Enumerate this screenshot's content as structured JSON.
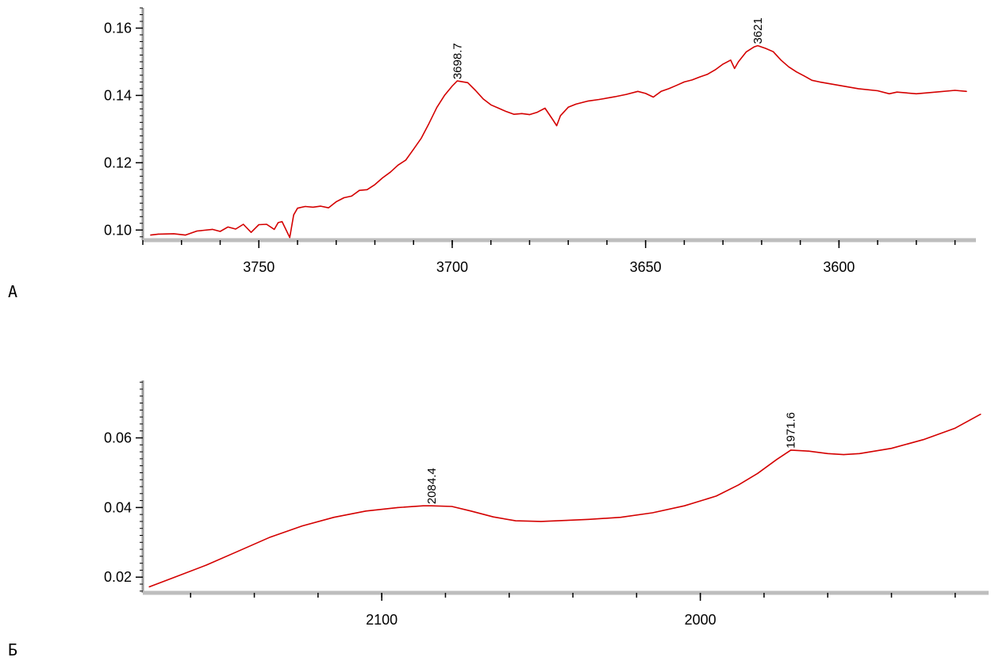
{
  "panels": [
    {
      "letter": "А"
    },
    {
      "letter": "Б"
    }
  ],
  "chart_data": [
    {
      "type": "line",
      "xlim": [
        3780,
        3565
      ],
      "ylim": [
        0.097,
        0.166
      ],
      "x_reversed": true,
      "xticks": [
        3750,
        3700,
        3650,
        3600
      ],
      "xtick_labels": [
        "3750",
        "3700",
        "3650",
        "3600"
      ],
      "yticks": [
        0.1,
        0.12,
        0.14,
        0.16
      ],
      "ytick_labels": [
        "0.10",
        "0.12",
        "0.14",
        "0.16"
      ],
      "series": [
        {
          "color": "#d40000",
          "x": [
            3778,
            3776,
            3772,
            3769,
            3766,
            3762,
            3760,
            3758,
            3756,
            3754,
            3752,
            3750,
            3748,
            3746,
            3745,
            3744,
            3742,
            3741,
            3740,
            3738,
            3736,
            3734,
            3732,
            3730,
            3728,
            3726,
            3724,
            3722,
            3720,
            3718,
            3716,
            3714,
            3712,
            3710,
            3708,
            3706,
            3704,
            3702,
            3700,
            3698.7,
            3696,
            3694,
            3692,
            3690,
            3688,
            3686,
            3684,
            3682,
            3680,
            3678,
            3676,
            3674,
            3673,
            3672,
            3670,
            3668,
            3665,
            3662,
            3658,
            3655,
            3652,
            3650,
            3648,
            3646,
            3644,
            3642,
            3640,
            3638,
            3636,
            3634,
            3632,
            3630,
            3628,
            3627,
            3626,
            3624,
            3622,
            3621,
            3619,
            3617,
            3615,
            3613,
            3611,
            3609,
            3607,
            3605,
            3600,
            3595,
            3590,
            3587,
            3585,
            3580,
            3575,
            3570,
            3567
          ],
          "y": [
            0.0985,
            0.0988,
            0.0989,
            0.0985,
            0.0997,
            0.1002,
            0.0996,
            0.1009,
            0.1003,
            0.1017,
            0.0993,
            0.1016,
            0.1017,
            0.1002,
            0.1022,
            0.1025,
            0.0978,
            0.1045,
            0.1065,
            0.107,
            0.1068,
            0.1071,
            0.1066,
            0.1084,
            0.1096,
            0.1101,
            0.1118,
            0.112,
            0.1135,
            0.1155,
            0.1172,
            0.1193,
            0.1208,
            0.124,
            0.1273,
            0.1317,
            0.1364,
            0.14,
            0.1428,
            0.1443,
            0.1438,
            0.1415,
            0.139,
            0.1372,
            0.1362,
            0.1352,
            0.1344,
            0.1346,
            0.1343,
            0.135,
            0.1362,
            0.1328,
            0.131,
            0.134,
            0.1365,
            0.1374,
            0.1383,
            0.1388,
            0.1396,
            0.1403,
            0.1412,
            0.1406,
            0.1395,
            0.1412,
            0.142,
            0.143,
            0.144,
            0.1446,
            0.1455,
            0.1463,
            0.1476,
            0.1493,
            0.1505,
            0.148,
            0.15,
            0.1529,
            0.1544,
            0.1548,
            0.154,
            0.153,
            0.1505,
            0.1485,
            0.147,
            0.1458,
            0.1445,
            0.144,
            0.143,
            0.142,
            0.1414,
            0.1405,
            0.141,
            0.1405,
            0.141,
            0.1415,
            0.1412
          ]
        }
      ],
      "annotations": [
        {
          "label": "3698.7",
          "x": 3698.7,
          "y": 0.1443
        },
        {
          "label": "3621",
          "x": 3621,
          "y": 0.1548
        }
      ]
    },
    {
      "type": "line",
      "xlim": [
        2175,
        1910
      ],
      "ylim": [
        0.0155,
        0.0765
      ],
      "x_reversed": true,
      "xticks": [
        2100,
        2000
      ],
      "xtick_labels": [
        "2100",
        "2000"
      ],
      "yticks": [
        0.02,
        0.04,
        0.06
      ],
      "ytick_labels": [
        "0.02",
        "0.04",
        "0.06"
      ],
      "series": [
        {
          "color": "#d40000",
          "x": [
            2173,
            2165,
            2155,
            2145,
            2135,
            2125,
            2115,
            2105,
            2095,
            2087,
            2084.4,
            2078,
            2072,
            2065,
            2058,
            2050,
            2042,
            2035,
            2025,
            2015,
            2005,
            1995,
            1988,
            1982,
            1976,
            1971.6,
            1966,
            1960,
            1955,
            1950,
            1940,
            1930,
            1920,
            1912
          ],
          "y": [
            0.0172,
            0.02,
            0.0235,
            0.0275,
            0.0315,
            0.0347,
            0.0372,
            0.039,
            0.04,
            0.0405,
            0.0405,
            0.0403,
            0.039,
            0.0373,
            0.0362,
            0.036,
            0.0363,
            0.0366,
            0.0372,
            0.0385,
            0.0405,
            0.0433,
            0.0465,
            0.0498,
            0.0538,
            0.0565,
            0.0562,
            0.0555,
            0.0552,
            0.0555,
            0.057,
            0.0595,
            0.0628,
            0.0668
          ]
        }
      ],
      "annotations": [
        {
          "label": "2084.4",
          "x": 2084.4,
          "y": 0.0405
        },
        {
          "label": "1971.6",
          "x": 1971.6,
          "y": 0.0565
        }
      ]
    }
  ]
}
